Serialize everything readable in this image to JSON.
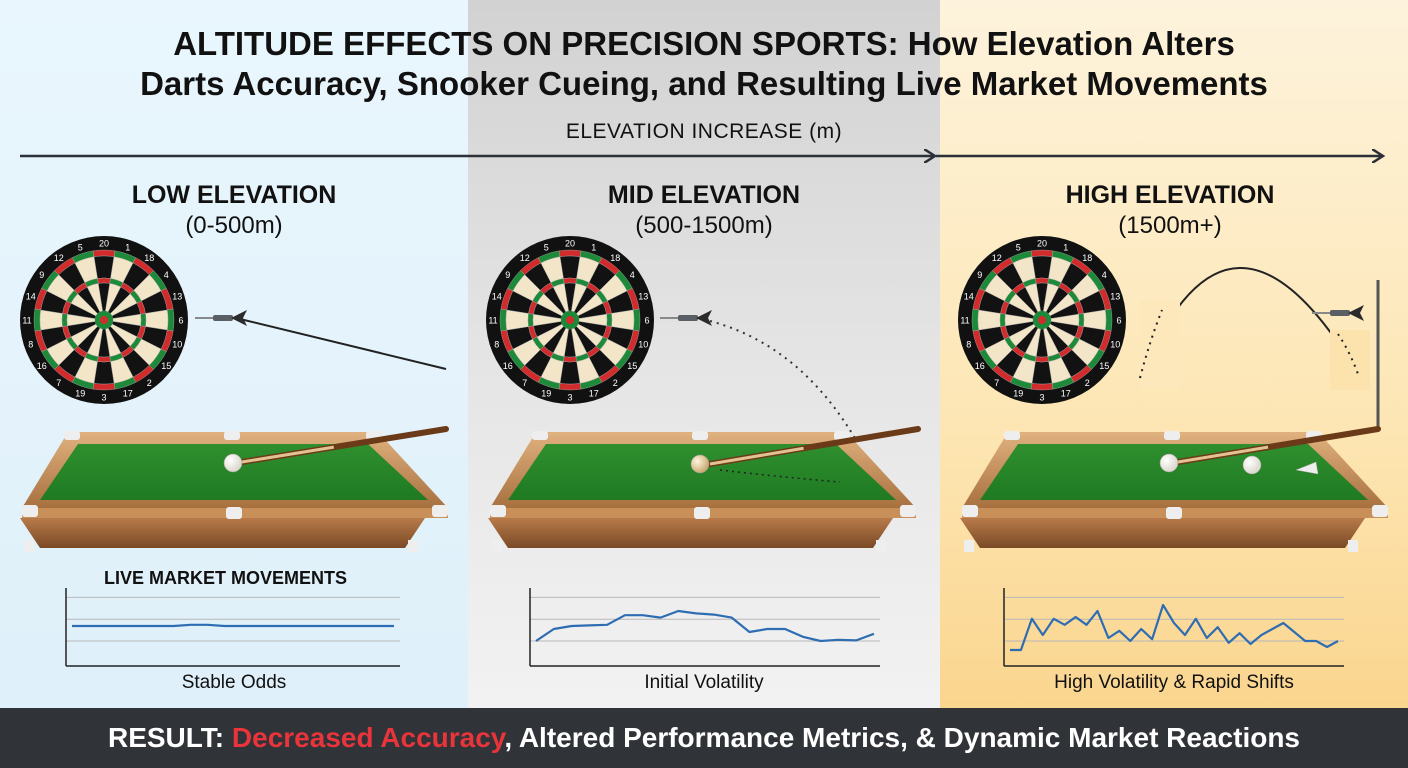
{
  "title": {
    "line1": "ALTITUDE EFFECTS ON PRECISION SPORTS: How Elevation Alters",
    "line2": "Darts Accuracy, Snooker Cueing, and Resulting Live Market Movements"
  },
  "axis_label": "ELEVATION INCREASE (m)",
  "zones": [
    {
      "title": "LOW ELEVATION",
      "range": "(0-500m)",
      "caption": "Stable Odds",
      "background": "#e3f3fb"
    },
    {
      "title": "MID ELEVATION",
      "range": "(500-1500m)",
      "caption": "Initial Volatility",
      "background": "#dcdcdc"
    },
    {
      "title": "HIGH ELEVATION",
      "range": "(1500m+)",
      "caption": "High Volatility & Rapid Shifts",
      "background": "#fbdfa3"
    }
  ],
  "chart_title": "LIVE MARKET MOVEMENTS",
  "footer": {
    "prefix": "RESULT: ",
    "highlight": "Decreased Accuracy",
    "suffix": ", Altered Performance Metrics, & Dynamic Market Reactions",
    "highlight_color": "#e8343a"
  },
  "dartboard_numbers": [
    "20",
    "1",
    "18",
    "4",
    "13",
    "6",
    "10",
    "15",
    "2",
    "17",
    "3",
    "19",
    "7",
    "16",
    "8",
    "11",
    "14",
    "9",
    "12",
    "5"
  ],
  "chart_data": [
    {
      "type": "line",
      "series": [
        {
          "values": [
            0.5,
            0.5,
            0.5,
            0.5,
            0.5,
            0.5,
            0.5,
            0.52,
            0.52,
            0.5,
            0.5,
            0.5,
            0.5,
            0.5,
            0.5,
            0.5,
            0.5,
            0.5,
            0.5,
            0.5
          ]
        }
      ]
    },
    {
      "type": "line",
      "series": [
        {
          "values": [
            0.25,
            0.45,
            0.5,
            0.51,
            0.52,
            0.68,
            0.68,
            0.64,
            0.75,
            0.71,
            0.69,
            0.64,
            0.4,
            0.45,
            0.45,
            0.32,
            0.25,
            0.27,
            0.26,
            0.37
          ]
        }
      ]
    },
    {
      "type": "line",
      "series": [
        {
          "values": [
            0.1,
            0.1,
            0.62,
            0.35,
            0.62,
            0.52,
            0.65,
            0.52,
            0.75,
            0.3,
            0.42,
            0.25,
            0.45,
            0.28,
            0.85,
            0.55,
            0.35,
            0.62,
            0.3,
            0.48,
            0.22,
            0.38,
            0.2,
            0.35,
            0.45,
            0.55,
            0.4,
            0.25,
            0.25,
            0.15,
            0.25
          ]
        }
      ]
    }
  ]
}
